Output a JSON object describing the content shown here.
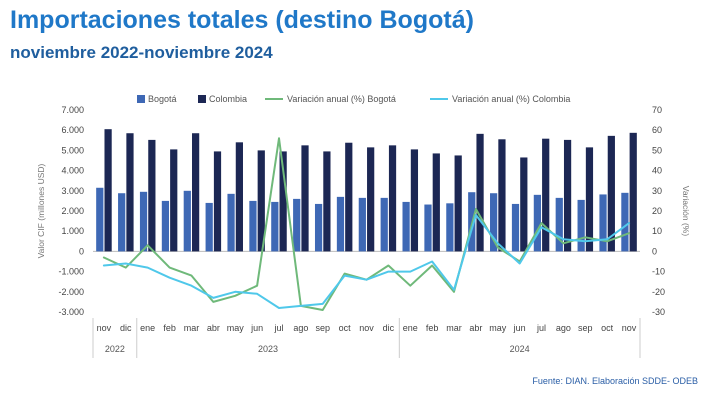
{
  "title": "Importaciones totales (destino Bogotá)",
  "subtitle": "noviembre 2022-noviembre 2024",
  "source": "Fuente: DIAN. Elaboración SDDE- ODEB",
  "colors": {
    "bogota": "#3e68b5",
    "colombia": "#1c2754",
    "var_bogota": "#6fb97a",
    "var_colombia": "#4fc8ea",
    "title": "#1f78c8"
  },
  "chart_data": {
    "type": "bar+line",
    "categories": [
      "nov",
      "dic",
      "ene",
      "feb",
      "mar",
      "abr",
      "may",
      "jun",
      "jul",
      "ago",
      "sep",
      "oct",
      "nov",
      "dic",
      "ene",
      "feb",
      "mar",
      "abr",
      "may",
      "jun",
      "jul",
      "ago",
      "sep",
      "oct",
      "nov"
    ],
    "year_groups": [
      {
        "label": "2022",
        "start": 0,
        "end": 1
      },
      {
        "label": "2023",
        "start": 2,
        "end": 13
      },
      {
        "label": "2024",
        "start": 14,
        "end": 24
      }
    ],
    "series": [
      {
        "name": "Bogotá",
        "kind": "bar",
        "axis": "left",
        "values": [
          3150,
          2880,
          2950,
          2500,
          3000,
          2400,
          2850,
          2500,
          2450,
          2600,
          2350,
          2700,
          2650,
          2650,
          2450,
          2320,
          2380,
          2930,
          2880,
          2350,
          2800,
          2650,
          2550,
          2820,
          2900
        ]
      },
      {
        "name": "Colombia",
        "kind": "bar",
        "axis": "left",
        "values": [
          6050,
          5850,
          5520,
          5050,
          5850,
          4950,
          5400,
          5000,
          4950,
          5250,
          4950,
          5380,
          5150,
          5250,
          5050,
          4850,
          4750,
          5820,
          5550,
          4650,
          5580,
          5520,
          5150,
          5720,
          5870
        ]
      },
      {
        "name": "Variación anual (%) Bogotá",
        "kind": "line",
        "axis": "right",
        "values": [
          -3,
          -8,
          3,
          -8,
          -12,
          -25,
          -22,
          -17,
          56,
          -27,
          -29,
          -11,
          -14,
          -7,
          -17,
          -7,
          -20,
          21,
          2,
          -5,
          14,
          4,
          7,
          5,
          9
        ]
      },
      {
        "name": "Variación anual (%) Colombia",
        "kind": "line",
        "axis": "right",
        "values": [
          -7,
          -6,
          -8,
          -13,
          -17,
          -23,
          -20,
          -21,
          -28,
          -27,
          -26,
          -12,
          -14,
          -10,
          -10,
          -5,
          -19,
          18,
          4,
          -6,
          12,
          6,
          5,
          6,
          14
        ]
      }
    ],
    "y_left": {
      "label": "Valor CIF (millones USD)",
      "min": -3000,
      "max": 7000,
      "step": 1000,
      "tick_labels": [
        "-3.000",
        "-2.000",
        "-1.000",
        "0",
        "1.000",
        "2.000",
        "3.000",
        "4.000",
        "5.000",
        "6.000",
        "7.000"
      ]
    },
    "y_right": {
      "label": "Variación (%)",
      "min": -30,
      "max": 70,
      "step": 10,
      "tick_labels": [
        "-30",
        "-20",
        "-10",
        "0",
        "10",
        "20",
        "30",
        "40",
        "50",
        "60",
        "70"
      ]
    },
    "legend_position": "top"
  }
}
